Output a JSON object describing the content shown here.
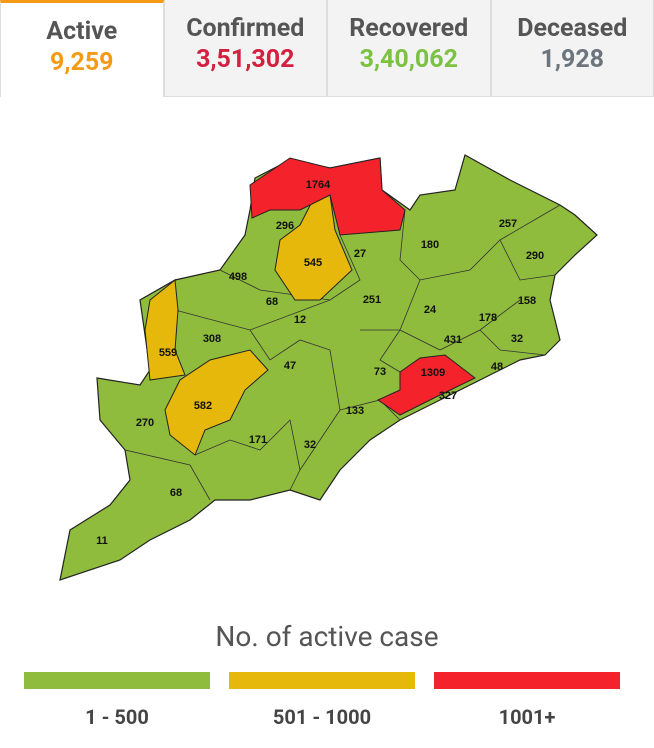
{
  "tabs": [
    {
      "title": "Active",
      "value": "9,259",
      "color": "#f59a14"
    },
    {
      "title": "Confirmed",
      "value": "3,51,302",
      "color": "#d4203f"
    },
    {
      "title": "Recovered",
      "value": "3,40,062",
      "color": "#7cc242"
    },
    {
      "title": "Deceased",
      "value": "1,928",
      "color": "#6c757d"
    }
  ],
  "districts": [
    {
      "value": 1764,
      "color": "#f4232b"
    },
    {
      "value": 296,
      "color": "#8fbc3c"
    },
    {
      "value": 545,
      "color": "#e6b80c"
    },
    {
      "value": 27,
      "color": "#8fbc3c"
    },
    {
      "value": 180,
      "color": "#8fbc3c"
    },
    {
      "value": 257,
      "color": "#8fbc3c"
    },
    {
      "value": 290,
      "color": "#8fbc3c"
    },
    {
      "value": 498,
      "color": "#8fbc3c"
    },
    {
      "value": 68,
      "color": "#8fbc3c"
    },
    {
      "value": 251,
      "color": "#8fbc3c"
    },
    {
      "value": 24,
      "color": "#8fbc3c"
    },
    {
      "value": 158,
      "color": "#8fbc3c"
    },
    {
      "value": 178,
      "color": "#8fbc3c"
    },
    {
      "value": 12,
      "color": "#8fbc3c"
    },
    {
      "value": 308,
      "color": "#8fbc3c"
    },
    {
      "value": 559,
      "color": "#e6b80c"
    },
    {
      "value": 431,
      "color": "#8fbc3c"
    },
    {
      "value": 32,
      "color": "#8fbc3c"
    },
    {
      "value": 47,
      "color": "#8fbc3c"
    },
    {
      "value": 73,
      "color": "#8fbc3c"
    },
    {
      "value": 1309,
      "color": "#f4232b"
    },
    {
      "value": 48,
      "color": "#8fbc3c"
    },
    {
      "value": 582,
      "color": "#e6b80c"
    },
    {
      "value": 327,
      "color": "#8fbc3c"
    },
    {
      "value": 270,
      "color": "#8fbc3c"
    },
    {
      "value": 133,
      "color": "#8fbc3c"
    },
    {
      "value": 171,
      "color": "#8fbc3c"
    },
    {
      "value": 32,
      "color": "#8fbc3c"
    },
    {
      "value": 68,
      "color": "#8fbc3c"
    },
    {
      "value": 11,
      "color": "#8fbc3c"
    }
  ],
  "legend": {
    "title": "No. of active case",
    "items": [
      {
        "label": "1 - 500",
        "color": "#8fbc3c"
      },
      {
        "label": "501 - 1000",
        "color": "#e6b80c"
      },
      {
        "label": "1001+",
        "color": "#f4232b"
      }
    ]
  }
}
